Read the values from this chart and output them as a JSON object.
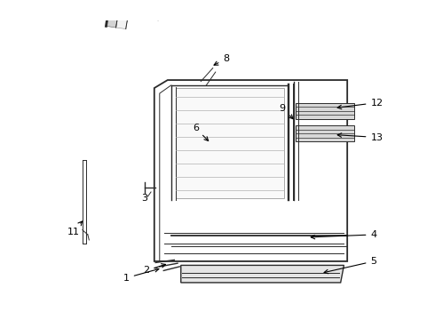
{
  "bg_color": "#ffffff",
  "line_color": "#2a2a2a",
  "label_color": "#000000",
  "figsize": [
    4.9,
    3.6
  ],
  "dpi": 100,
  "xlim": [
    0,
    6.5
  ],
  "ylim": [
    0,
    4.2
  ]
}
